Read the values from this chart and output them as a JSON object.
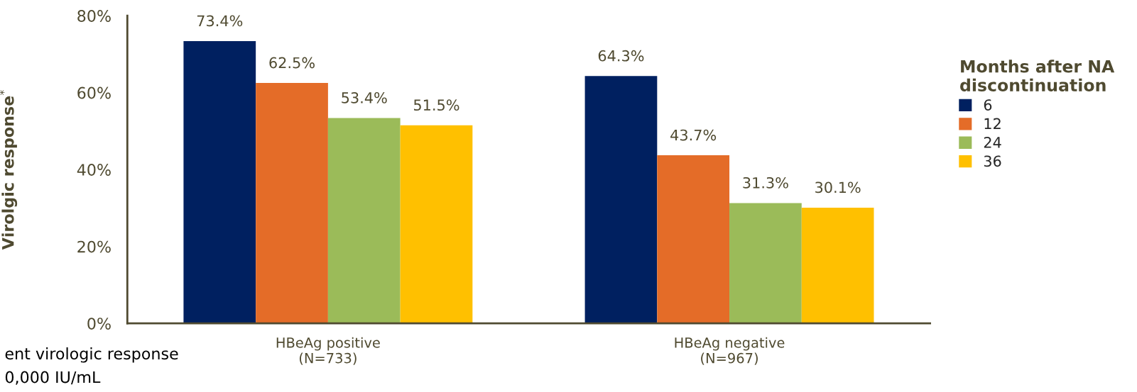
{
  "chart_data": {
    "type": "bar",
    "ylabel": "Virolgic response$^{*}$",
    "legend_title": "Months after NA\ndiscontinuation",
    "categories": [
      "HBeAg positive\n(N=733)",
      "HBeAg negative\n(N=967)"
    ],
    "series": [
      {
        "name": "6",
        "color": "#002060",
        "values": [
          73.4,
          64.3
        ],
        "value_labels": [
          "73.4%",
          "64.3%"
        ]
      },
      {
        "name": "12",
        "color": "#e46c28",
        "values": [
          62.5,
          43.7
        ],
        "value_labels": [
          "62.5%",
          "43.7%"
        ]
      },
      {
        "name": "24",
        "color": "#9bbb59",
        "values": [
          53.4,
          31.3
        ],
        "value_labels": [
          "53.4%",
          "31.3%"
        ]
      },
      {
        "name": "36",
        "color": "#ffc000",
        "values": [
          51.5,
          30.1
        ],
        "value_labels": [
          "51.5%",
          "30.1%"
        ]
      }
    ],
    "ylim": [
      0,
      80
    ],
    "yticks": [
      {
        "value": 0,
        "label": "0%"
      },
      {
        "value": 20,
        "label": "20%"
      },
      {
        "value": 40,
        "label": "40%"
      },
      {
        "value": 60,
        "label": "60%"
      },
      {
        "value": 80,
        "label": "80%"
      }
    ],
    "grid": false,
    "legend": "right",
    "annotations": [
      "ent virologic response",
      "0,000 IU/mL"
    ]
  }
}
